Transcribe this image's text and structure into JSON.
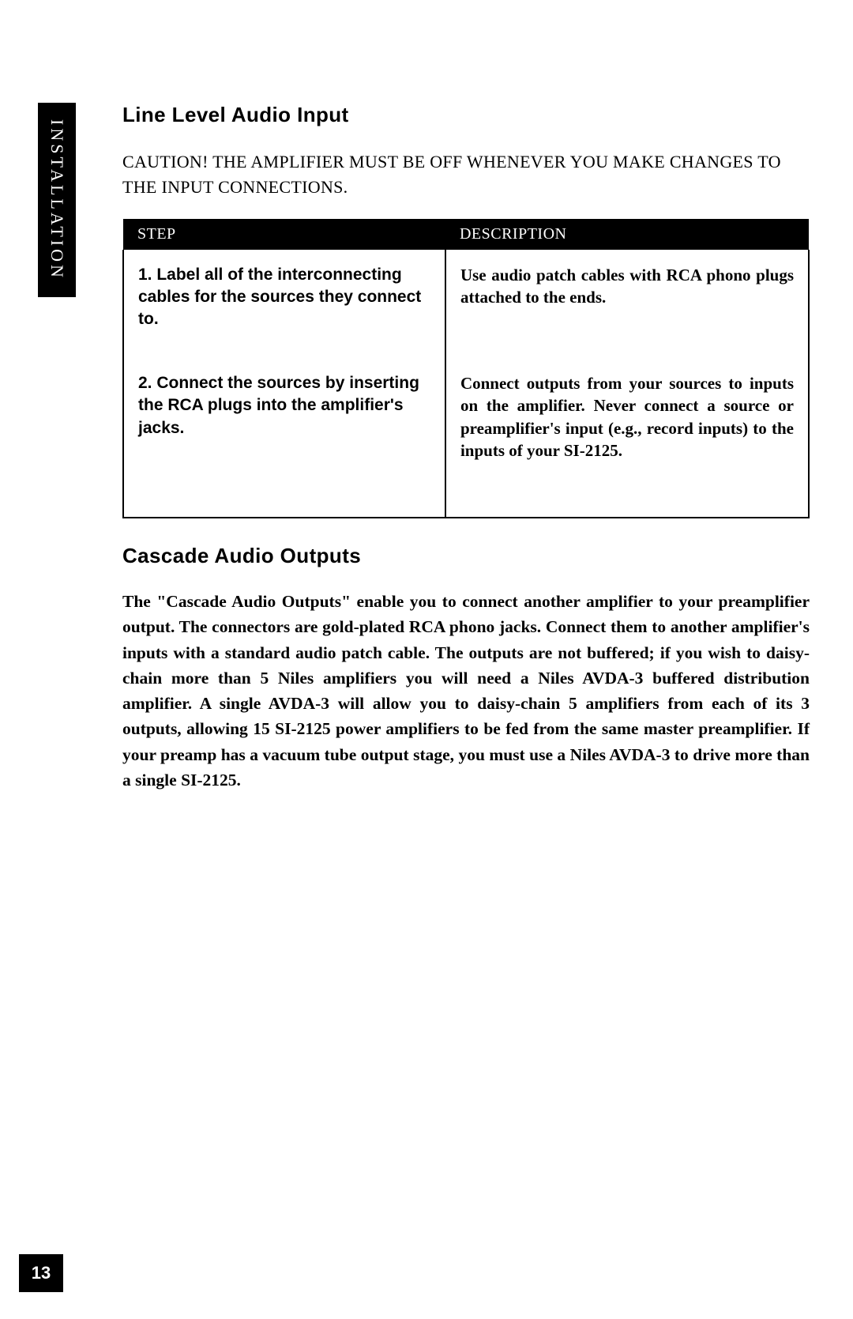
{
  "sidebar": {
    "label": "INSTALLATION"
  },
  "section1": {
    "heading": "Line Level Audio Input",
    "caution": "CAUTION! THE AMPLIFIER MUST BE OFF WHENEVER YOU MAKE CHANGES TO THE INPUT CONNECTIONS."
  },
  "table": {
    "headers": {
      "step": "STEP",
      "description": "DESCRIPTION"
    },
    "rows": [
      {
        "step": "1. Label all of the interconnecting cables for the sources they connect to.",
        "desc": "Use audio patch cables with RCA phono plugs attached to the ends."
      },
      {
        "step": "2. Connect the sources by inserting the RCA plugs into the amplifier's jacks.",
        "desc": "Connect outputs from your sources to inputs on the amplifier. Never connect a source or preamplifier's input (e.g., record inputs) to the inputs of your SI-2125."
      }
    ]
  },
  "section2": {
    "heading": "Cascade Audio Outputs",
    "body": "The \"Cascade Audio Outputs\" enable you to connect another amplifier to your preamplifier output. The connectors are gold-plated RCA phono jacks. Connect them to another amplifier's inputs with a standard audio patch cable. The outputs are not buffered; if you wish to daisy-chain more than 5 Niles amplifiers you will need a Niles AVDA-3 buffered distribution amplifier. A single AVDA-3 will allow you to daisy-chain 5 amplifiers from each of its 3 outputs, allowing 15 SI-2125 power amplifiers to be fed from the same master preamplifier. If your preamp has a vacuum tube output stage, you must use a Niles AVDA-3 to drive more than a single SI-2125."
  },
  "page_number": "13"
}
